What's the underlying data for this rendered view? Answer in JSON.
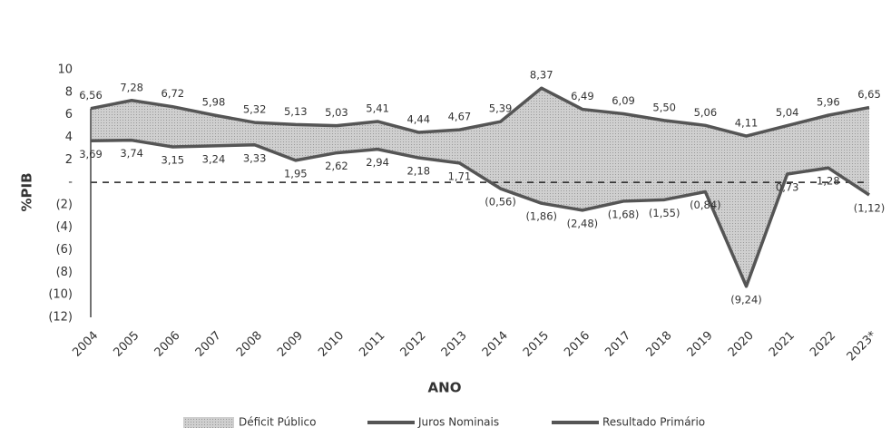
{
  "chart_data": {
    "type": "line",
    "categories": [
      "2004",
      "2005",
      "2006",
      "2007",
      "2008",
      "2009",
      "2010",
      "2011",
      "2012",
      "2013",
      "2014",
      "2015",
      "2016",
      "2017",
      "2018",
      "2019",
      "2020",
      "2021",
      "2022",
      "2023*"
    ],
    "area": {
      "name": "Déficit Público",
      "color": "#cfcfcf"
    },
    "series": [
      {
        "name": "Juros Nominais",
        "color": "#555555",
        "values": [
          6.56,
          7.28,
          6.72,
          5.98,
          5.32,
          5.13,
          5.03,
          5.41,
          4.44,
          4.67,
          5.39,
          8.37,
          6.49,
          6.09,
          5.5,
          5.06,
          4.11,
          5.04,
          5.96,
          6.65
        ],
        "value_labels": [
          "6,56",
          "7,28",
          "6,72",
          "5,98",
          "5,32",
          "5,13",
          "5,03",
          "5,41",
          "4,44",
          "4,67",
          "5,39",
          "8,37",
          "6,49",
          "6,09",
          "5,50",
          "5,06",
          "4,11",
          "5,04",
          "5,96",
          "6,65"
        ]
      },
      {
        "name": "Resultado Primário",
        "color": "#555555",
        "values": [
          3.69,
          3.74,
          3.15,
          3.24,
          3.33,
          1.95,
          2.62,
          2.94,
          2.18,
          1.71,
          -0.56,
          -1.86,
          -2.48,
          -1.68,
          -1.55,
          -0.84,
          -9.24,
          0.73,
          1.28,
          -1.12
        ],
        "value_labels": [
          "3,69",
          "3,74",
          "3,15",
          "3,24",
          "3,33",
          "1,95",
          "2,62",
          "2,94",
          "2,18",
          "1,71",
          "(0,56)",
          "(1,86)",
          "(2,48)",
          "(1,68)",
          "(1,55)",
          "(0,84)",
          "(9,24)",
          "0,73",
          "1,28",
          "(1,12)"
        ]
      }
    ],
    "xlabel": "ANO",
    "ylabel": "%PIB",
    "ylim": [
      -12,
      10
    ],
    "yticks": [
      10,
      8,
      6,
      4,
      2,
      {
        "value": 0,
        "label": "-"
      },
      {
        "value": -2,
        "label": "(2)"
      },
      {
        "value": -4,
        "label": "(4)"
      },
      {
        "value": -6,
        "label": "(6)"
      },
      {
        "value": -8,
        "label": "(8)"
      },
      {
        "value": -10,
        "label": "(10)"
      },
      {
        "value": -12,
        "label": "(12)"
      }
    ],
    "zero_line": "dashed",
    "legend": "bottom"
  }
}
